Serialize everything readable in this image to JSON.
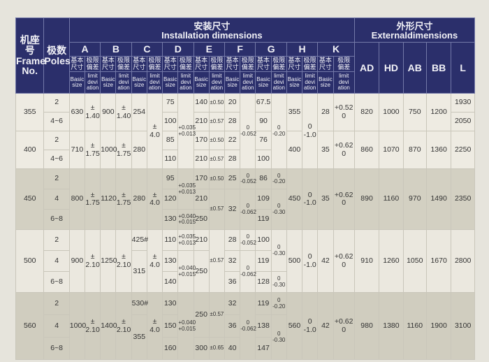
{
  "header": {
    "frame_cn": "机座号",
    "frame_en": "Frame\nNo.",
    "poles_cn": "极数",
    "poles_en": "Poles",
    "install_cn": "安装尺寸",
    "install_en": "Installation dimensions",
    "external_cn": "外形尺寸",
    "external_en": "Externaldimensions",
    "groups": [
      "A",
      "B",
      "C",
      "D",
      "E",
      "F",
      "G",
      "H",
      "K"
    ],
    "basic_cn": "基本\n尺寸",
    "limit_cn": "极限\n偏差",
    "basic_en": "Basic\nsize",
    "limit_en": "limit\ndevi\nation",
    "external_cols": [
      "AD",
      "HD",
      "AB",
      "BB",
      "L"
    ]
  },
  "colors": {
    "header_bg": "#2b2f6b",
    "row_light": "#eeebe2",
    "row_shaded": "#d3d0c2"
  },
  "rows": [
    {
      "g": 0,
      "cells": [
        {
          "t": "355",
          "r": 2
        },
        "2",
        {
          "t": "630",
          "r": 2
        },
        {
          "t": "±\n1.40",
          "r": 2
        },
        {
          "t": "900",
          "r": 2
        },
        {
          "t": "±\n1.40",
          "r": 2
        },
        {
          "t": "254",
          "r": 2
        },
        {
          "t": "±\n4.0",
          "r": 4
        },
        "75",
        {
          "t": "+0.035\n+0.013",
          "r": 4,
          "s": 1
        },
        "140",
        {
          "t": "±0.50",
          "s": 1
        },
        "20",
        {
          "t": "0\n-0.052",
          "r": 4,
          "s": 1
        },
        "67.5",
        {
          "t": "0\n-0.20",
          "r": 4,
          "s": 1
        },
        {
          "t": "355",
          "r": 2
        },
        {
          "t": "0\n-1.0",
          "r": 4
        },
        {
          "t": "28",
          "r": 2
        },
        {
          "t": "+0.52\n0",
          "r": 2
        },
        {
          "t": "820",
          "r": 2
        },
        {
          "t": "1000",
          "r": 2
        },
        {
          "t": "750",
          "r": 2
        },
        {
          "t": "1200",
          "r": 2
        },
        "1930"
      ]
    },
    {
      "g": 0,
      "cells": [
        "4~6",
        "100",
        "210",
        {
          "t": "±0.57",
          "s": 1
        },
        "28",
        "90",
        "2050"
      ]
    },
    {
      "g": 0,
      "cells": [
        {
          "t": "400",
          "r": 2
        },
        "2",
        {
          "t": "710",
          "r": 2
        },
        {
          "t": "±\n1.75",
          "r": 2
        },
        {
          "t": "1000",
          "r": 2
        },
        {
          "t": "±\n1.75",
          "r": 2
        },
        {
          "t": "280",
          "r": 2
        },
        "85",
        "170",
        {
          "t": "±0.50",
          "s": 1
        },
        "22",
        "76",
        {
          "t": "400",
          "r": 2
        },
        {
          "t": "35",
          "r": 2
        },
        {
          "t": "+0.62\n0",
          "r": 2
        },
        {
          "t": "860",
          "r": 2
        },
        {
          "t": "1070",
          "r": 2
        },
        {
          "t": "870",
          "r": 2
        },
        {
          "t": "1360",
          "r": 2
        },
        {
          "t": "2250",
          "r": 2
        }
      ]
    },
    {
      "g": 0,
      "cells": [
        "4~6",
        "110",
        "210",
        {
          "t": "±0.57",
          "s": 1
        },
        "28",
        "100"
      ]
    },
    {
      "g": 1,
      "cells": [
        {
          "t": "450",
          "r": 3
        },
        "2",
        {
          "t": "800",
          "r": 3
        },
        {
          "t": "±\n1.75",
          "r": 3
        },
        {
          "t": "1120",
          "r": 3
        },
        {
          "t": "±\n1.75",
          "r": 3
        },
        {
          "t": "280",
          "r": 3
        },
        {
          "t": "±\n4.0",
          "r": 3
        },
        "95",
        {
          "t": "+0.035\n+0.013",
          "r": 2,
          "s": 1
        },
        "170",
        {
          "t": "±0.50",
          "s": 1
        },
        "25",
        {
          "t": "0\n-0.052",
          "s": 1
        },
        "86",
        {
          "t": "0\n-0.20",
          "s": 1
        },
        {
          "t": "450",
          "r": 3
        },
        {
          "t": "0\n-1.0",
          "r": 3
        },
        {
          "t": "35",
          "r": 3
        },
        {
          "t": "+0.62\n0",
          "r": 3
        },
        {
          "t": "890",
          "r": 3
        },
        {
          "t": "1160",
          "r": 3
        },
        {
          "t": "970",
          "r": 3
        },
        {
          "t": "1490",
          "r": 3
        },
        {
          "t": "2350",
          "r": 3
        }
      ]
    },
    {
      "g": 1,
      "cells": [
        "4",
        "120",
        "210",
        {
          "t": "±0.57",
          "r": 2,
          "s": 1
        },
        {
          "t": "32",
          "r": 2
        },
        {
          "t": "0\n-0.062",
          "r": 2,
          "s": 1
        },
        "109",
        {
          "t": "0\n-0.30",
          "r": 2,
          "s": 1
        }
      ]
    },
    {
      "g": 1,
      "cells": [
        "6~8",
        "130",
        {
          "t": "+0.040\n+0.015",
          "s": 1
        },
        "250",
        "119"
      ]
    },
    {
      "g": 2,
      "cells": [
        {
          "t": "500",
          "r": 3
        },
        "2",
        {
          "t": "900",
          "r": 3
        },
        {
          "t": "±\n2.10",
          "r": 3
        },
        {
          "t": "1250",
          "r": 3
        },
        {
          "t": "±\n2.10",
          "r": 3
        },
        "425#",
        {
          "t": "±\n4.0",
          "r": 3
        },
        "110",
        {
          "t": "+0.035\n+0.013",
          "s": 1
        },
        "210",
        {
          "t": "±0.57",
          "r": 3,
          "s": 1
        },
        "28",
        {
          "t": "0\n-0.052",
          "s": 1
        },
        "100",
        {
          "t": "0\n-0.30",
          "r": 2,
          "s": 1
        },
        {
          "t": "500",
          "r": 3
        },
        {
          "t": "0\n-1.0",
          "r": 3
        },
        {
          "t": "42",
          "r": 3
        },
        {
          "t": "+0.62\n0",
          "r": 3
        },
        {
          "t": "910",
          "r": 3
        },
        {
          "t": "1260",
          "r": 3
        },
        {
          "t": "1050",
          "r": 3
        },
        {
          "t": "1670",
          "r": 3
        },
        {
          "t": "2800",
          "r": 3
        }
      ]
    },
    {
      "g": 2,
      "cells": [
        "4",
        {
          "t": "315",
          "r": 2
        },
        "130",
        {
          "t": "+0.040\n+0.015",
          "r": 2,
          "s": 1
        },
        {
          "t": "250",
          "r": 2
        },
        "32",
        {
          "t": "0\n-0.062",
          "r": 2,
          "s": 1
        },
        "119"
      ]
    },
    {
      "g": 2,
      "cells": [
        "6~8",
        "140",
        "36",
        "128",
        {
          "t": "0\n-0.30",
          "s": 1
        }
      ]
    },
    {
      "g": 3,
      "cells": [
        {
          "t": "560",
          "r": 3
        },
        "2",
        {
          "t": "1000",
          "r": 3
        },
        {
          "t": "±\n2.10",
          "r": 3
        },
        {
          "t": "1400",
          "r": 3
        },
        {
          "t": "±\n2.10",
          "r": 3
        },
        "530#",
        {
          "t": "±\n4.0",
          "r": 3
        },
        "130",
        {
          "t": "+0.040\n+0.015",
          "r": 3,
          "s": 1
        },
        {
          "t": "250",
          "r": 2
        },
        {
          "t": "±0.57",
          "r": 2,
          "s": 1
        },
        "32",
        {
          "t": "0\n-0.062",
          "r": 3,
          "s": 1
        },
        "119",
        {
          "t": "0\n-0.20",
          "s": 1
        },
        {
          "t": "560",
          "r": 3
        },
        {
          "t": "0\n-1.0",
          "r": 3
        },
        {
          "t": "42",
          "r": 3
        },
        {
          "t": "+0.62\n0",
          "r": 3
        },
        {
          "t": "980",
          "r": 3
        },
        {
          "t": "1380",
          "r": 3
        },
        {
          "t": "1160",
          "r": 3
        },
        {
          "t": "1900",
          "r": 3
        },
        {
          "t": "3100",
          "r": 3
        }
      ]
    },
    {
      "g": 3,
      "cells": [
        "4",
        {
          "t": "355",
          "r": 2
        },
        "150",
        "36",
        "138",
        {
          "t": "0\n-0.30",
          "r": 2,
          "s": 1
        }
      ]
    },
    {
      "g": 3,
      "cells": [
        "6~8",
        "160",
        "300",
        {
          "t": "±0.65",
          "s": 1
        },
        "40",
        "147"
      ]
    }
  ]
}
